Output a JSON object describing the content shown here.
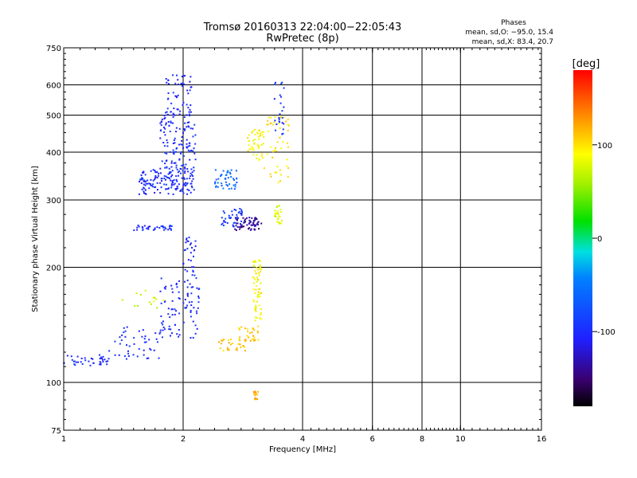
{
  "chart_data": {
    "type": "scatter",
    "title": "Tromsø 20160313 22:04:00−22:05:43",
    "subtitle": "RwPretec (8p)",
    "phase_stats": {
      "header": "Phases",
      "line_o": "mean, sd,O: −95.0, 15.4",
      "line_x": "mean, sd,X:  83.4, 20.7"
    },
    "xlabel": "Frequency [MHz]",
    "ylabel": "Stationary phase Virtual Height [km]",
    "x_scale": "log",
    "y_scale": "log",
    "xlim": [
      1,
      16
    ],
    "ylim": [
      75,
      750
    ],
    "x_ticks": [
      1,
      2,
      4,
      6,
      8,
      10,
      16
    ],
    "x_grid": [
      2,
      4,
      6,
      8,
      10
    ],
    "y_ticks": [
      75,
      100,
      200,
      300,
      400,
      500,
      600,
      750
    ],
    "y_grid": [
      100,
      200,
      300,
      400,
      500,
      600
    ],
    "grid": true,
    "colorbar": {
      "label": "[deg]",
      "range": [
        -180,
        180
      ],
      "ticks": [
        -100,
        0,
        100
      ],
      "colormap": "rainbow"
    },
    "clusters": [
      {
        "x": [
          1.0,
          1.3
        ],
        "y": [
          110,
          118
        ],
        "phase": -100,
        "n": 40
      },
      {
        "x": [
          1.3,
          1.75
        ],
        "y": [
          115,
          140
        ],
        "phase": -100,
        "n": 45
      },
      {
        "x": [
          1.75,
          2.2
        ],
        "y": [
          130,
          190
        ],
        "phase": -100,
        "n": 90
      },
      {
        "x": [
          2.0,
          2.15
        ],
        "y": [
          190,
          240
        ],
        "phase": -105,
        "n": 30
      },
      {
        "x": [
          1.5,
          1.9
        ],
        "y": [
          250,
          258
        ],
        "phase": -100,
        "n": 35
      },
      {
        "x": [
          1.55,
          2.15
        ],
        "y": [
          310,
          360
        ],
        "phase": -100,
        "n": 150
      },
      {
        "x": [
          1.75,
          2.15
        ],
        "y": [
          360,
          520
        ],
        "phase": -100,
        "n": 140
      },
      {
        "x": [
          1.8,
          2.1
        ],
        "y": [
          520,
          640
        ],
        "phase": -100,
        "n": 40
      },
      {
        "x": [
          2.4,
          2.75
        ],
        "y": [
          320,
          360
        ],
        "phase": -60,
        "n": 45
      },
      {
        "x": [
          2.5,
          2.85
        ],
        "y": [
          255,
          285
        ],
        "phase": -90,
        "n": 40
      },
      {
        "x": [
          2.7,
          3.15
        ],
        "y": [
          250,
          270
        ],
        "phase": -140,
        "n": 60
      },
      {
        "x": [
          2.45,
          2.9
        ],
        "y": [
          121,
          130
        ],
        "phase": 110,
        "n": 30
      },
      {
        "x": [
          2.75,
          3.1
        ],
        "y": [
          128,
          140
        ],
        "phase": 110,
        "n": 30
      },
      {
        "x": [
          3.0,
          3.15
        ],
        "y": [
          140,
          210
        ],
        "phase": 90,
        "n": 70
      },
      {
        "x": [
          2.9,
          3.2
        ],
        "y": [
          380,
          460
        ],
        "phase": 90,
        "n": 45
      },
      {
        "x": [
          3.2,
          3.7
        ],
        "y": [
          330,
          500
        ],
        "phase": 100,
        "n": 50
      },
      {
        "x": [
          3.4,
          3.55
        ],
        "y": [
          260,
          290
        ],
        "phase": 80,
        "n": 25
      },
      {
        "x": [
          3.0,
          3.1
        ],
        "y": [
          90,
          95
        ],
        "phase": 120,
        "n": 15
      },
      {
        "x": [
          1.4,
          1.8
        ],
        "y": [
          155,
          175
        ],
        "phase": 70,
        "n": 15
      },
      {
        "x": [
          3.4,
          3.6
        ],
        "y": [
          440,
          620
        ],
        "phase": -95,
        "n": 25
      }
    ]
  }
}
